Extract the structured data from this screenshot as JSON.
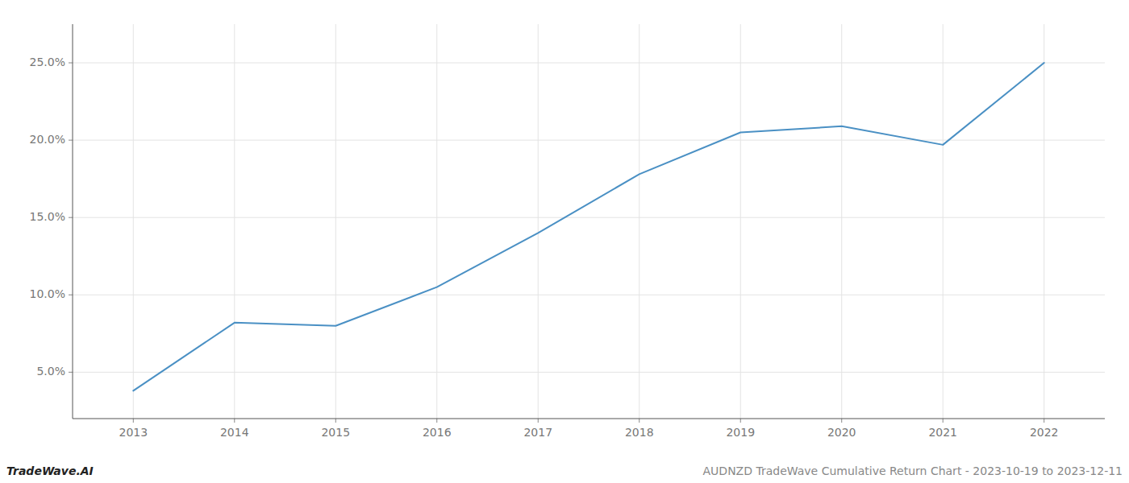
{
  "chart_data": {
    "type": "line",
    "x": [
      2013,
      2014,
      2015,
      2016,
      2017,
      2018,
      2019,
      2020,
      2021,
      2022
    ],
    "values": [
      3.8,
      8.2,
      8.0,
      10.5,
      14.0,
      17.8,
      20.5,
      20.9,
      19.7,
      25.0
    ],
    "color": "#4a90c4",
    "xlim": [
      2012.4,
      2022.6
    ],
    "ylim": [
      2.0,
      27.5
    ],
    "xticks": [
      2013,
      2014,
      2015,
      2016,
      2017,
      2018,
      2019,
      2020,
      2021,
      2022
    ],
    "yticks": [
      {
        "value": 5.0,
        "label": "5.0%"
      },
      {
        "value": 10.0,
        "label": "10.0%"
      },
      {
        "value": 15.0,
        "label": "15.0%"
      },
      {
        "value": 20.0,
        "label": "20.0%"
      },
      {
        "value": 25.0,
        "label": "25.0%"
      }
    ],
    "grid": true,
    "annotations": [
      "TradeWave.AI",
      "AUDNZD TradeWave Cumulative Return Chart - 2023-10-19 to 2023-12-11"
    ]
  }
}
